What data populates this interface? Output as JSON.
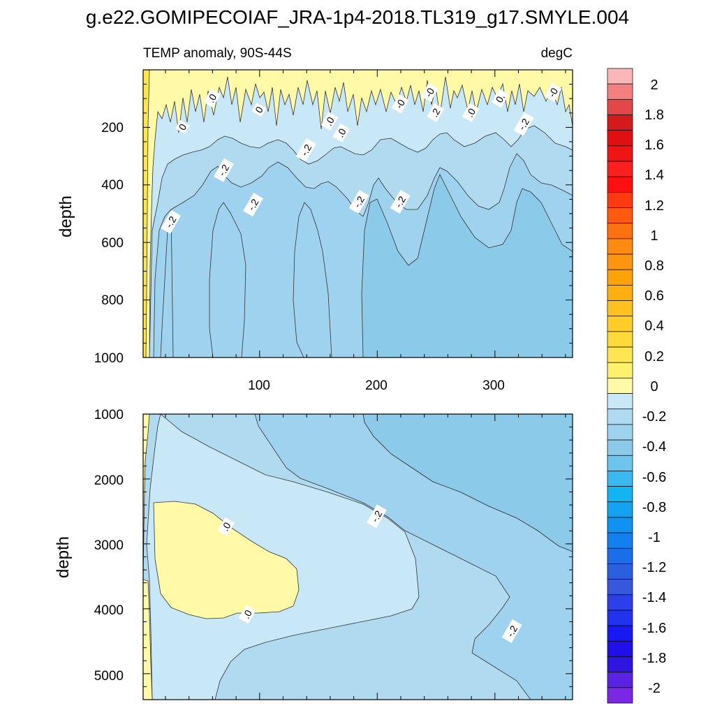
{
  "title": "g.e22.GOMIPECOIAF_JRA-1p4-2018.TL319_g17.SMYLE.004",
  "chart_data": [
    {
      "type": "contour",
      "panel": "upper",
      "left_subtitle": "TEMP anomaly, 90S-44S",
      "right_subtitle": "degC",
      "ylabel": "depth",
      "xlim": [
        1,
        366
      ],
      "ylim": [
        1000,
        0
      ],
      "x_ticks": [
        100,
        200,
        300
      ],
      "x_tick_labels": [
        "100",
        "200",
        "300"
      ],
      "y_ticks": [
        200,
        400,
        600,
        800,
        1000
      ],
      "y_tick_labels": [
        "200",
        "400",
        "600",
        "800",
        "1000"
      ],
      "contour_labels": [
        {
          "text": "0",
          "x": 35,
          "y": 200
        },
        {
          "text": ".0",
          "x": 60,
          "y": 100
        },
        {
          "text": "0",
          "x": 100,
          "y": 140
        },
        {
          "text": ".0",
          "x": 160,
          "y": 180
        },
        {
          "text": ".0",
          "x": 170,
          "y": 220
        },
        {
          "text": "-0",
          "x": 220,
          "y": 120
        },
        {
          "text": "-0",
          "x": 245,
          "y": 80
        },
        {
          "text": ".2",
          "x": 250,
          "y": 150
        },
        {
          "text": ".0",
          "x": 280,
          "y": 150
        },
        {
          "text": "0.",
          "x": 305,
          "y": 100
        },
        {
          "text": "-0",
          "x": 350,
          "y": 80
        },
        {
          "text": "-.2",
          "x": 325,
          "y": 190
        },
        {
          "text": "-.2",
          "x": 140,
          "y": 280
        },
        {
          "text": "-.2",
          "x": 70,
          "y": 350
        },
        {
          "text": "-.2",
          "x": 95,
          "y": 470
        },
        {
          "text": "-.2",
          "x": 185,
          "y": 460
        },
        {
          "text": "-.2",
          "x": 220,
          "y": 460
        },
        {
          "text": "-.2",
          "x": 25,
          "y": 530
        }
      ]
    },
    {
      "type": "contour",
      "panel": "lower",
      "ylabel": "depth",
      "xlim": [
        1,
        366
      ],
      "ylim": [
        5400,
        1000
      ],
      "y_ticks": [
        1000,
        2000,
        3000,
        4000,
        5000
      ],
      "y_tick_labels": [
        "1000",
        "2000",
        "3000",
        "4000",
        "5000"
      ],
      "contour_labels": [
        {
          "text": ".0",
          "x": 72,
          "y": 2740
        },
        {
          "text": ".0",
          "x": 90,
          "y": 4090
        },
        {
          "text": "-.2",
          "x": 200,
          "y": 2580
        },
        {
          "text": "-.2",
          "x": 315,
          "y": 4350
        }
      ]
    },
    {
      "type": "colorbar",
      "levels": [
        -2.0,
        -1.9,
        -1.8,
        -1.7,
        -1.6,
        -1.5,
        -1.4,
        -1.3,
        -1.2,
        -1.1,
        -1.0,
        -0.9,
        -0.8,
        -0.7,
        -0.6,
        -0.5,
        -0.4,
        -0.3,
        -0.2,
        -0.1,
        0.0,
        0.1,
        0.2,
        0.3,
        0.4,
        0.5,
        0.6,
        0.7,
        0.8,
        0.9,
        1.0,
        1.1,
        1.2,
        1.3,
        1.4,
        1.5,
        1.6,
        1.7,
        1.8,
        1.9,
        2.0
      ],
      "colors_top_to_bottom": [
        "#fbb6b8",
        "#f28080",
        "#e2474a",
        "#d41a1a",
        "#e01010",
        "#ee1515",
        "#fa2020",
        "#ff1010",
        "#ff3a10",
        "#ff5a10",
        "#ff7010",
        "#ff8b10",
        "#ff9410",
        "#ffa208",
        "#ffb010",
        "#ffc020",
        "#ffcc28",
        "#ffd83a",
        "#ffe552",
        "#fff06e",
        "#fff9a8",
        "#c8e7f7",
        "#b0daf0",
        "#9fd2ee",
        "#8ccaea",
        "#6cc4ef",
        "#39b9f0",
        "#14b3f2",
        "#13a3f2",
        "#1092f0",
        "#1280ee",
        "#1a6fe8",
        "#2a5fe0",
        "#3858dc",
        "#2d3fe8",
        "#2233f0",
        "#1818f0",
        "#2010e8",
        "#3015e0",
        "#5a22e2",
        "#7a28e2"
      ],
      "tick_labels": [
        "2",
        "1.8",
        "1.6",
        "1.4",
        "1.2",
        "1",
        "0.8",
        "0.6",
        "0.4",
        "0.2",
        "0",
        "-0.2",
        "-0.4",
        "-0.6",
        "-0.8",
        "-1",
        "-1.2",
        "-1.4",
        "-1.6",
        "-1.8",
        "-2"
      ]
    }
  ]
}
